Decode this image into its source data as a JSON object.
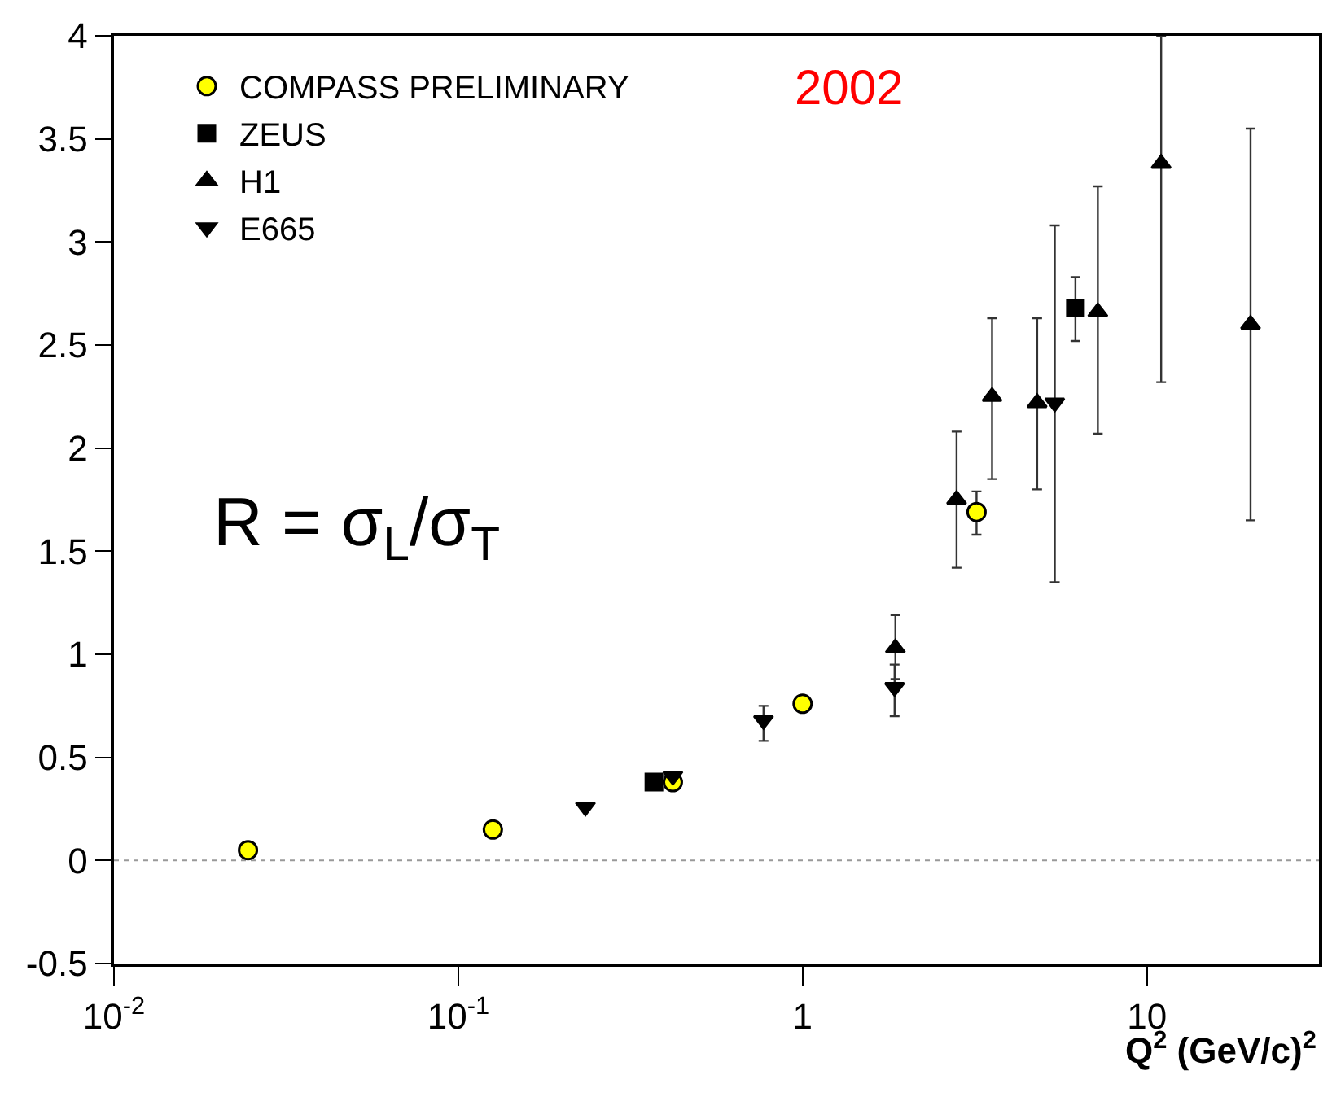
{
  "chart_data": {
    "type": "scatter",
    "xlabel": "Q$^{2}$ (GeV/c)$^{2}$",
    "log": "x",
    "grid": false,
    "legend": "top left",
    "xlim": [
      0.01,
      31.6
    ],
    "xticks": [
      {
        "value": 0.01,
        "label": "10$^{-2}$"
      },
      {
        "value": 0.1,
        "label": "10$^{-1}$"
      },
      1,
      10
    ],
    "ylim": [
      -0.5,
      4
    ],
    "yticks": [
      -0.5,
      0,
      0.5,
      1,
      1.5,
      2,
      2.5,
      3,
      3.5,
      4
    ],
    "ref_lines": [
      {
        "axis": "y",
        "value": 0,
        "color": "#999999",
        "line_style": "dotted"
      }
    ],
    "annotations": [
      "2002",
      "R = σ$_{L}$/σ$_{T}$"
    ],
    "series": [
      {
        "name": "COMPASS PRELIMINARY",
        "color": "#ffff00",
        "marker": "circle",
        "x": [
          0.0245,
          0.126,
          0.42,
          1.0,
          3.2
        ],
        "values": [
          0.05,
          0.15,
          0.38,
          0.76,
          1.69
        ],
        "errors": [
          null,
          null,
          null,
          null,
          [
            1.58,
            1.79
          ]
        ]
      },
      {
        "name": "ZEUS",
        "color": "#000000",
        "marker": "square",
        "x": [
          0.37,
          6.2
        ],
        "values": [
          0.38,
          2.68
        ],
        "errors": [
          null,
          [
            2.52,
            2.83
          ]
        ]
      },
      {
        "name": "H1",
        "color": "#000000",
        "marker": "triangle",
        "x": [
          1.86,
          2.8,
          3.55,
          4.8,
          7.2,
          11,
          20
        ],
        "values": [
          1.03,
          1.75,
          2.25,
          2.22,
          2.66,
          3.38,
          2.6
        ],
        "errors": [
          [
            0.88,
            1.19
          ],
          [
            1.42,
            2.08
          ],
          [
            1.85,
            2.63
          ],
          [
            1.8,
            2.63
          ],
          [
            2.07,
            3.27
          ],
          [
            2.32,
            4.0
          ],
          [
            1.65,
            3.55
          ]
        ]
      },
      {
        "name": "E665",
        "color": "#000000",
        "marker": "triangle-down",
        "x": [
          0.234,
          0.42,
          0.77,
          1.85,
          5.4
        ],
        "values": [
          0.26,
          0.41,
          0.68,
          0.84,
          2.22
        ],
        "errors": [
          null,
          null,
          [
            0.58,
            0.75
          ],
          [
            0.7,
            0.95
          ],
          [
            1.35,
            3.08
          ]
        ]
      }
    ]
  }
}
